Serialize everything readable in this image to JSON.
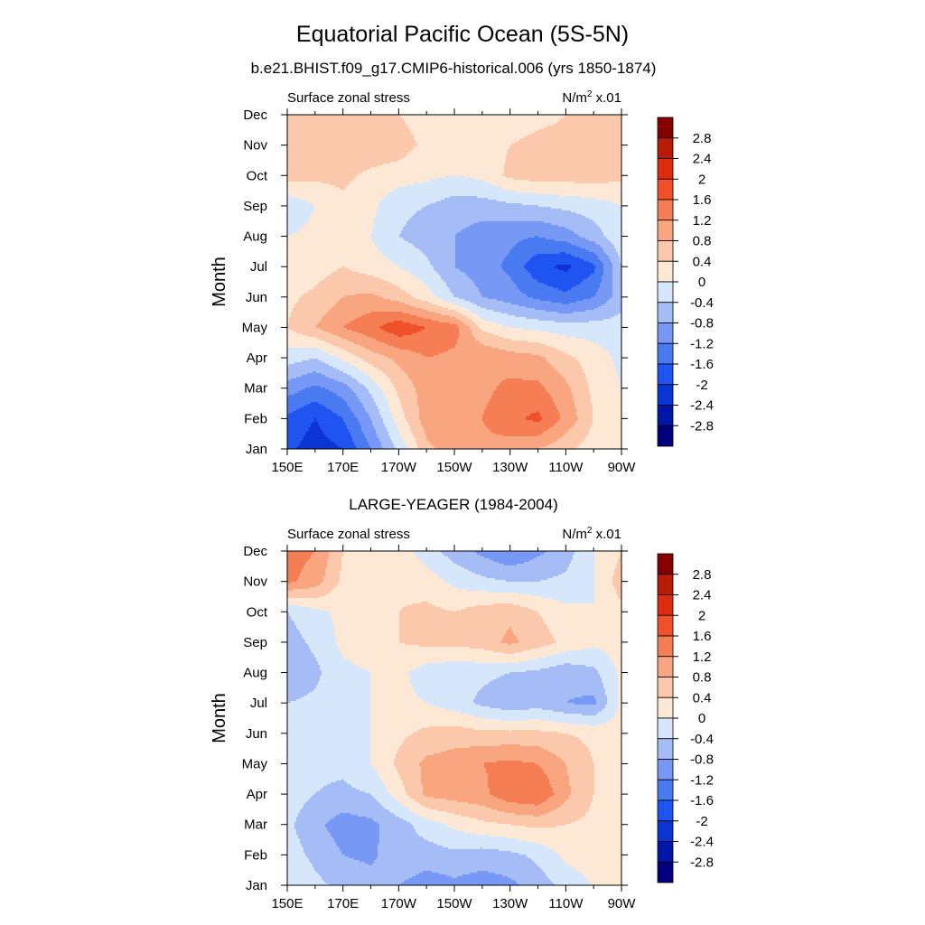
{
  "figure": {
    "title": "Equatorial Pacific Ocean (5S-5N)"
  },
  "colorbar": {
    "levels": [
      -2.8,
      -2.4,
      -2,
      -1.6,
      -1.2,
      -0.8,
      -0.4,
      0,
      0.4,
      0.8,
      1.2,
      1.6,
      2,
      2.4,
      2.8
    ],
    "labels": [
      "2.8",
      "2.4",
      "2",
      "1.6",
      "1.2",
      "0.8",
      "0.4",
      "0",
      "-0.4",
      "-0.8",
      "-1.2",
      "-1.6",
      "-2",
      "-2.4",
      "-2.8"
    ],
    "colors": [
      "#00007f",
      "#0016a8",
      "#0a35d4",
      "#1f54f0",
      "#4a7af2",
      "#7798f4",
      "#a6bcf7",
      "#d6e6fb",
      "#fde8d5",
      "#fcc8ab",
      "#f9a680",
      "#f67e55",
      "#f0502a",
      "#de2d0e",
      "#b81b06",
      "#870000"
    ]
  },
  "chart_data": [
    {
      "type": "heatmap",
      "subtitle": "b.e21.BHIST.f09_g17.CMIP6-historical.006 (yrs 1850-1874)",
      "left_string": "Surface zonal stress",
      "units": "N/m",
      "units_exp": "2",
      "units_scale": " x.01",
      "ylabel": "Month",
      "xlim": [
        150,
        270
      ],
      "x_ticks": [
        150,
        170,
        190,
        210,
        230,
        250,
        270
      ],
      "x_tick_labels": [
        "150E",
        "170E",
        "170W",
        "150W",
        "130W",
        "110W",
        "90W"
      ],
      "y_tick_labels": [
        "Jan",
        "Feb",
        "Mar",
        "Apr",
        "May",
        "Jun",
        "Jul",
        "Aug",
        "Sep",
        "Oct",
        "Nov",
        "Dec"
      ],
      "months_x": [
        150,
        160,
        170,
        180,
        190,
        200,
        210,
        220,
        230,
        240,
        250,
        260,
        270
      ],
      "values": [
        [
          -1.9,
          -2.2,
          -2.0,
          -1.2,
          -0.3,
          0.7,
          1.0,
          1.1,
          1.0,
          0.8,
          0.5,
          0.2,
          0.0
        ],
        [
          -1.7,
          -2.0,
          -1.6,
          -0.8,
          0.2,
          1.0,
          1.1,
          1.2,
          1.5,
          1.7,
          1.1,
          0.4,
          0.0
        ],
        [
          -1.0,
          -1.3,
          -1.0,
          -0.3,
          0.5,
          1.0,
          1.0,
          1.1,
          1.3,
          1.3,
          0.9,
          0.3,
          0.0
        ],
        [
          -0.2,
          -0.4,
          0.1,
          0.6,
          0.9,
          1.2,
          1.1,
          1.2,
          1.0,
          0.9,
          0.5,
          0.2,
          -0.1
        ],
        [
          0.4,
          0.8,
          1.2,
          1.5,
          1.9,
          1.6,
          1.4,
          0.3,
          0.0,
          -0.1,
          -0.2,
          -0.2,
          -0.2
        ],
        [
          0.3,
          0.5,
          0.8,
          0.9,
          0.6,
          0.2,
          -0.4,
          -0.8,
          -1.0,
          -1.3,
          -1.5,
          -1.2,
          -0.6
        ],
        [
          0.1,
          0.2,
          0.4,
          0.2,
          0.0,
          -0.3,
          -0.8,
          -1.0,
          -1.3,
          -1.9,
          -2.1,
          -1.7,
          -0.4
        ],
        [
          0.0,
          0.1,
          0.2,
          0.0,
          -0.4,
          -0.6,
          -0.8,
          -1.0,
          -1.1,
          -1.2,
          -1.0,
          -0.6,
          -0.1
        ],
        [
          -0.3,
          0.0,
          0.3,
          0.1,
          -0.3,
          -0.4,
          -0.6,
          -0.6,
          -0.5,
          -0.4,
          -0.3,
          -0.2,
          0.0
        ],
        [
          0.6,
          0.5,
          0.5,
          0.3,
          0.2,
          0.1,
          0.0,
          0.1,
          0.5,
          0.6,
          0.6,
          0.6,
          0.5
        ],
        [
          0.6,
          0.8,
          0.8,
          0.7,
          0.6,
          0.3,
          0.2,
          0.2,
          0.4,
          0.5,
          0.5,
          0.5,
          0.5
        ],
        [
          0.4,
          0.5,
          0.5,
          0.5,
          0.4,
          0.2,
          0.1,
          0.1,
          0.2,
          0.3,
          0.4,
          0.4,
          0.4
        ]
      ]
    },
    {
      "type": "heatmap",
      "subtitle": "LARGE-YEAGER (1984-2004)",
      "left_string": "Surface zonal stress",
      "units": "N/m",
      "units_exp": "2",
      "units_scale": " x.01",
      "ylabel": "Month",
      "xlim": [
        150,
        270
      ],
      "x_ticks": [
        150,
        170,
        190,
        210,
        230,
        250,
        270
      ],
      "x_tick_labels": [
        "150E",
        "170E",
        "170W",
        "150W",
        "130W",
        "110W",
        "90W"
      ],
      "y_tick_labels": [
        "Jan",
        "Feb",
        "Mar",
        "Apr",
        "May",
        "Jun",
        "Jul",
        "Aug",
        "Sep",
        "Oct",
        "Nov",
        "Dec"
      ],
      "months_x": [
        150,
        160,
        170,
        180,
        190,
        200,
        210,
        220,
        230,
        240,
        250,
        260,
        270
      ],
      "values": [
        [
          0.0,
          -0.3,
          -0.5,
          -0.6,
          -0.8,
          -1.0,
          -0.9,
          -1.0,
          -0.9,
          -0.6,
          -0.3,
          0.0,
          0.2
        ],
        [
          -0.2,
          -0.5,
          -0.8,
          -0.9,
          -0.5,
          -0.6,
          -0.5,
          -0.6,
          -0.5,
          -0.3,
          0.1,
          0.3,
          0.2
        ],
        [
          -0.3,
          -0.7,
          -1.0,
          -0.9,
          -0.6,
          -0.2,
          0.1,
          0.3,
          0.4,
          0.5,
          0.4,
          0.3,
          0.2
        ],
        [
          -0.2,
          -0.4,
          -0.5,
          -0.4,
          0.2,
          0.9,
          1.0,
          1.1,
          1.5,
          1.6,
          0.9,
          0.4,
          0.2
        ],
        [
          -0.2,
          -0.3,
          -0.3,
          0.0,
          0.5,
          0.9,
          1.0,
          1.2,
          1.3,
          1.2,
          0.8,
          0.4,
          0.2
        ],
        [
          -0.2,
          -0.3,
          -0.2,
          0.0,
          0.3,
          0.5,
          0.6,
          0.5,
          0.5,
          0.5,
          0.4,
          0.3,
          0.2
        ],
        [
          -0.4,
          -0.3,
          -0.1,
          0.0,
          0.1,
          0.0,
          -0.2,
          -0.5,
          -0.7,
          -0.6,
          -0.8,
          -0.9,
          0.1
        ],
        [
          -0.8,
          -0.5,
          -0.1,
          0.0,
          0.1,
          -0.2,
          -0.3,
          -0.3,
          -0.4,
          -0.5,
          -0.7,
          -0.5,
          0.1
        ],
        [
          -0.6,
          -0.3,
          0.1,
          0.2,
          0.4,
          0.5,
          0.5,
          0.6,
          0.9,
          0.6,
          0.3,
          0.1,
          0.2
        ],
        [
          -0.4,
          -0.1,
          0.1,
          0.2,
          0.4,
          0.5,
          0.4,
          0.6,
          0.7,
          0.4,
          0.1,
          0.0,
          0.3
        ],
        [
          1.3,
          1.0,
          0.3,
          0.2,
          0.3,
          0.2,
          -0.1,
          -0.3,
          -0.4,
          -0.4,
          -0.3,
          0.0,
          0.6
        ],
        [
          1.4,
          1.2,
          0.4,
          0.3,
          0.2,
          -0.2,
          -0.6,
          -0.9,
          -1.2,
          -0.9,
          -0.6,
          0.0,
          0.4
        ]
      ]
    }
  ]
}
